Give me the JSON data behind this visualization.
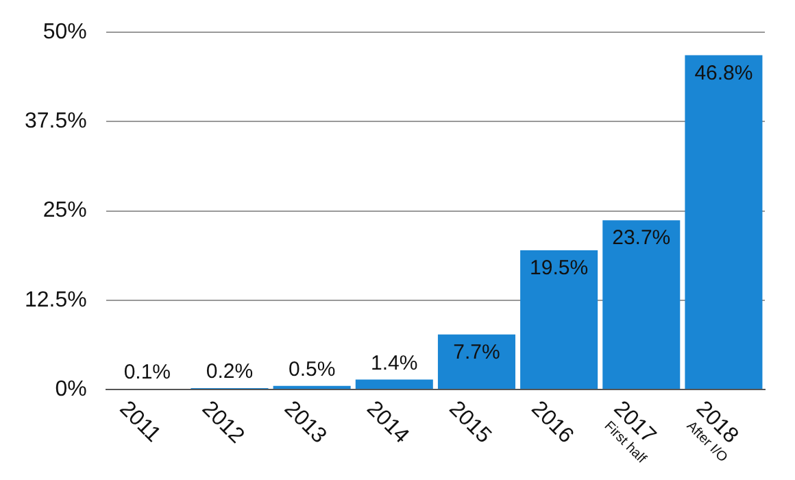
{
  "chart_data": {
    "type": "bar",
    "categories": [
      "2011",
      "2012",
      "2013",
      "2014",
      "2015",
      "2016",
      "2017\nFirst half",
      "2018\nAfter I/O"
    ],
    "values": [
      0.1,
      0.2,
      0.5,
      1.4,
      7.7,
      19.5,
      23.7,
      46.8
    ],
    "value_labels": [
      "0.1%",
      "0.2%",
      "0.5%",
      "1.4%",
      "7.7%",
      "19.5%",
      "23.7%",
      "46.8%"
    ],
    "color": "#1a86d4",
    "ylim": [
      0,
      50
    ],
    "yticks": [
      {
        "value": 0,
        "label": "0%"
      },
      {
        "value": 12.5,
        "label": "12.5%"
      },
      {
        "value": 25,
        "label": "25%"
      },
      {
        "value": 37.5,
        "label": "37.5%"
      },
      {
        "value": 50,
        "label": "50%"
      }
    ],
    "grid": "y",
    "legend": false
  }
}
